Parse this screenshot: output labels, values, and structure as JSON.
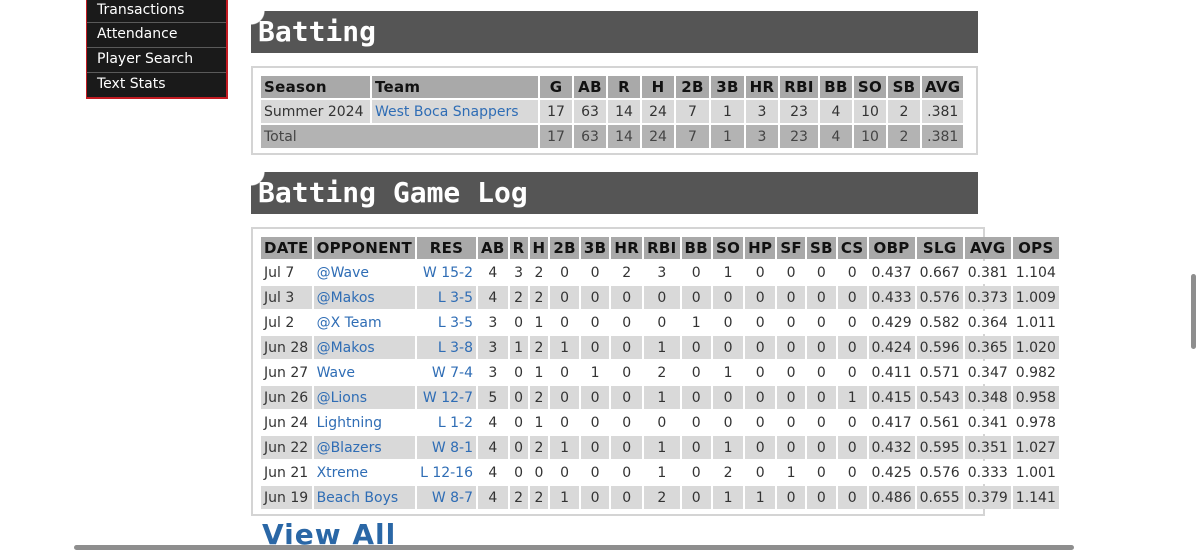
{
  "nav": {
    "items": [
      {
        "label": "Transactions"
      },
      {
        "label": "Attendance"
      },
      {
        "label": "Player Search"
      },
      {
        "label": "Text Stats"
      }
    ]
  },
  "batting": {
    "title": "Batting",
    "columns": [
      "Season",
      "Team",
      "G",
      "AB",
      "R",
      "H",
      "2B",
      "3B",
      "HR",
      "RBI",
      "BB",
      "SO",
      "SB",
      "AVG"
    ],
    "rows": [
      {
        "season": "Summer 2024",
        "team": "West Boca Snappers",
        "g": "17",
        "ab": "63",
        "r": "14",
        "h": "24",
        "2b": "7",
        "3b": "1",
        "hr": "3",
        "rbi": "23",
        "bb": "4",
        "so": "10",
        "sb": "2",
        "avg": ".381"
      }
    ],
    "total": {
      "label": "Total",
      "g": "17",
      "ab": "63",
      "r": "14",
      "h": "24",
      "2b": "7",
      "3b": "1",
      "hr": "3",
      "rbi": "23",
      "bb": "4",
      "so": "10",
      "sb": "2",
      "avg": ".381"
    }
  },
  "gamelog": {
    "title": "Batting Game Log",
    "columns": [
      "DATE",
      "OPPONENT",
      "RES",
      "AB",
      "R",
      "H",
      "2B",
      "3B",
      "HR",
      "RBI",
      "BB",
      "SO",
      "HP",
      "SF",
      "SB",
      "CS",
      "OBP",
      "SLG",
      "AVG",
      "OPS"
    ],
    "rows": [
      [
        "Jul 7",
        "@Wave",
        "W 15-2",
        "4",
        "3",
        "2",
        "0",
        "0",
        "2",
        "3",
        "0",
        "1",
        "0",
        "0",
        "0",
        "0",
        "0.437",
        "0.667",
        "0.381",
        "1.104"
      ],
      [
        "Jul 3",
        "@Makos",
        "L 3-5",
        "4",
        "2",
        "2",
        "0",
        "0",
        "0",
        "0",
        "0",
        "0",
        "0",
        "0",
        "0",
        "0",
        "0.433",
        "0.576",
        "0.373",
        "1.009"
      ],
      [
        "Jul 2",
        "@X Team",
        "L 3-5",
        "3",
        "0",
        "1",
        "0",
        "0",
        "0",
        "0",
        "1",
        "0",
        "0",
        "0",
        "0",
        "0",
        "0.429",
        "0.582",
        "0.364",
        "1.011"
      ],
      [
        "Jun 28",
        "@Makos",
        "L 3-8",
        "3",
        "1",
        "2",
        "1",
        "0",
        "0",
        "1",
        "0",
        "0",
        "0",
        "0",
        "0",
        "0",
        "0.424",
        "0.596",
        "0.365",
        "1.020"
      ],
      [
        "Jun 27",
        "Wave",
        "W 7-4",
        "3",
        "0",
        "1",
        "0",
        "1",
        "0",
        "2",
        "0",
        "1",
        "0",
        "0",
        "0",
        "0",
        "0.411",
        "0.571",
        "0.347",
        "0.982"
      ],
      [
        "Jun 26",
        "@Lions",
        "W 12-7",
        "5",
        "0",
        "2",
        "0",
        "0",
        "0",
        "1",
        "0",
        "0",
        "0",
        "0",
        "0",
        "1",
        "0.415",
        "0.543",
        "0.348",
        "0.958"
      ],
      [
        "Jun 24",
        "Lightning",
        "L 1-2",
        "4",
        "0",
        "1",
        "0",
        "0",
        "0",
        "0",
        "0",
        "0",
        "0",
        "0",
        "0",
        "0",
        "0.417",
        "0.561",
        "0.341",
        "0.978"
      ],
      [
        "Jun 22",
        "@Blazers",
        "W 8-1",
        "4",
        "0",
        "2",
        "1",
        "0",
        "0",
        "1",
        "0",
        "1",
        "0",
        "0",
        "0",
        "0",
        "0.432",
        "0.595",
        "0.351",
        "1.027"
      ],
      [
        "Jun 21",
        "Xtreme",
        "L 12-16",
        "4",
        "0",
        "0",
        "0",
        "0",
        "0",
        "1",
        "0",
        "2",
        "0",
        "1",
        "0",
        "0",
        "0.425",
        "0.576",
        "0.333",
        "1.001"
      ],
      [
        "Jun 19",
        "Beach Boys",
        "W 8-7",
        "4",
        "2",
        "2",
        "1",
        "0",
        "0",
        "2",
        "0",
        "1",
        "1",
        "0",
        "0",
        "0",
        "0.486",
        "0.655",
        "0.379",
        "1.141"
      ]
    ],
    "view_all": "View All"
  }
}
